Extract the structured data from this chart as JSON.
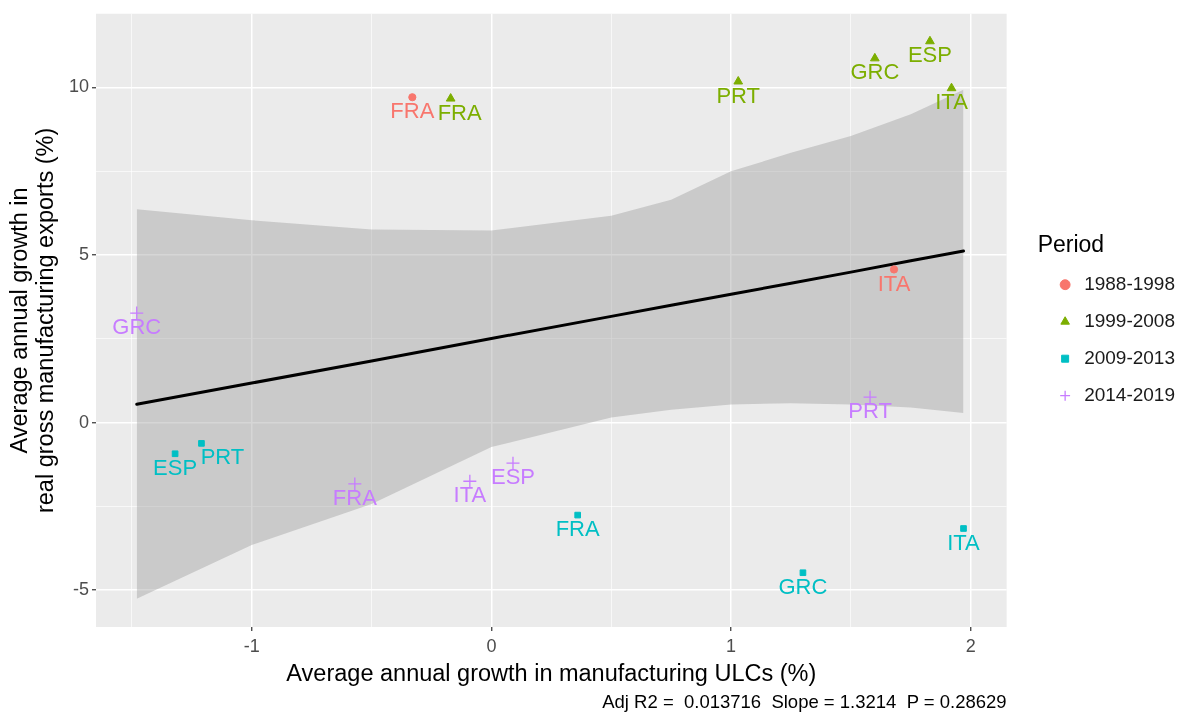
{
  "chart_data": {
    "type": "scatter",
    "xlabel": "Average annual growth in manufacturing ULCs (%)",
    "ylabel": "Average annual growth in\nreal gross manufacturing exports (%)",
    "legend_title": "Period",
    "legend": "right",
    "grid": true,
    "xlim": [
      -1.65,
      2.15
    ],
    "ylim": [
      -6.1,
      12.2
    ],
    "xticks": [
      {
        "value": -1.5,
        "label": null
      },
      -1,
      {
        "value": -0.5,
        "label": null
      },
      0,
      {
        "value": 0.5,
        "label": null
      },
      1,
      {
        "value": 1.5,
        "label": null
      },
      2
    ],
    "yticks": [
      -5,
      {
        "value": -2.5,
        "label": null
      },
      0,
      {
        "value": 2.5,
        "label": null
      },
      5,
      {
        "value": 7.5,
        "label": null
      },
      10
    ],
    "series": [
      {
        "name": "1988-1998",
        "color": "#f8766d",
        "marker": "circle",
        "x": [
          -0.33,
          1.68
        ],
        "values": [
          9.71,
          4.57
        ],
        "value_labels": [
          "FRA",
          "ITA"
        ]
      },
      {
        "name": "1999-2008",
        "color": "#7cae00",
        "marker": "triangle",
        "x": [
          -0.17,
          1.03,
          1.6,
          1.83,
          1.92
        ],
        "values": [
          9.67,
          10.18,
          10.87,
          11.38,
          9.98
        ],
        "value_labels": [
          "FRA",
          "PRT",
          "GRC",
          "ESP",
          "ITA"
        ]
      },
      {
        "name": "2009-2013",
        "color": "#00bfc4",
        "marker": "square",
        "x": [
          -1.32,
          -1.21,
          0.36,
          1.3,
          1.97
        ],
        "values": [
          -0.93,
          -0.62,
          -2.76,
          -4.48,
          -3.16
        ],
        "value_labels": [
          "ESP",
          "PRT",
          "FRA",
          "GRC",
          "ITA"
        ]
      },
      {
        "name": "2014-2019",
        "color": "#c77cff",
        "marker": "cross",
        "x": [
          -1.48,
          -0.57,
          -0.09,
          0.09,
          1.58
        ],
        "values": [
          3.27,
          -1.83,
          -1.75,
          -1.21,
          0.76
        ],
        "value_labels": [
          "GRC",
          "FRA",
          "ITA",
          "ESP",
          "PRT"
        ]
      },
      {
        "type": "line",
        "color": "#000000",
        "marker": "none",
        "x": [
          -1.48,
          -1,
          -0.5,
          0,
          0.5,
          0.75,
          1,
          1.25,
          1.5,
          1.75,
          1.97
        ],
        "values": [
          0.55,
          1.18,
          1.84,
          2.51,
          3.17,
          3.5,
          3.83,
          4.16,
          4.49,
          4.83,
          5.12
        ],
        "lower": [
          -5.26,
          -3.65,
          -2.43,
          -0.73,
          0.15,
          0.38,
          0.54,
          0.58,
          0.54,
          0.45,
          0.29
        ],
        "upper": [
          6.37,
          6.04,
          5.76,
          5.73,
          6.17,
          6.65,
          7.5,
          8.05,
          8.55,
          9.2,
          9.93
        ]
      }
    ],
    "annotations": [
      "Adj R2 =  0.013716  Slope = 1.3214  P = 0.28629"
    ]
  }
}
